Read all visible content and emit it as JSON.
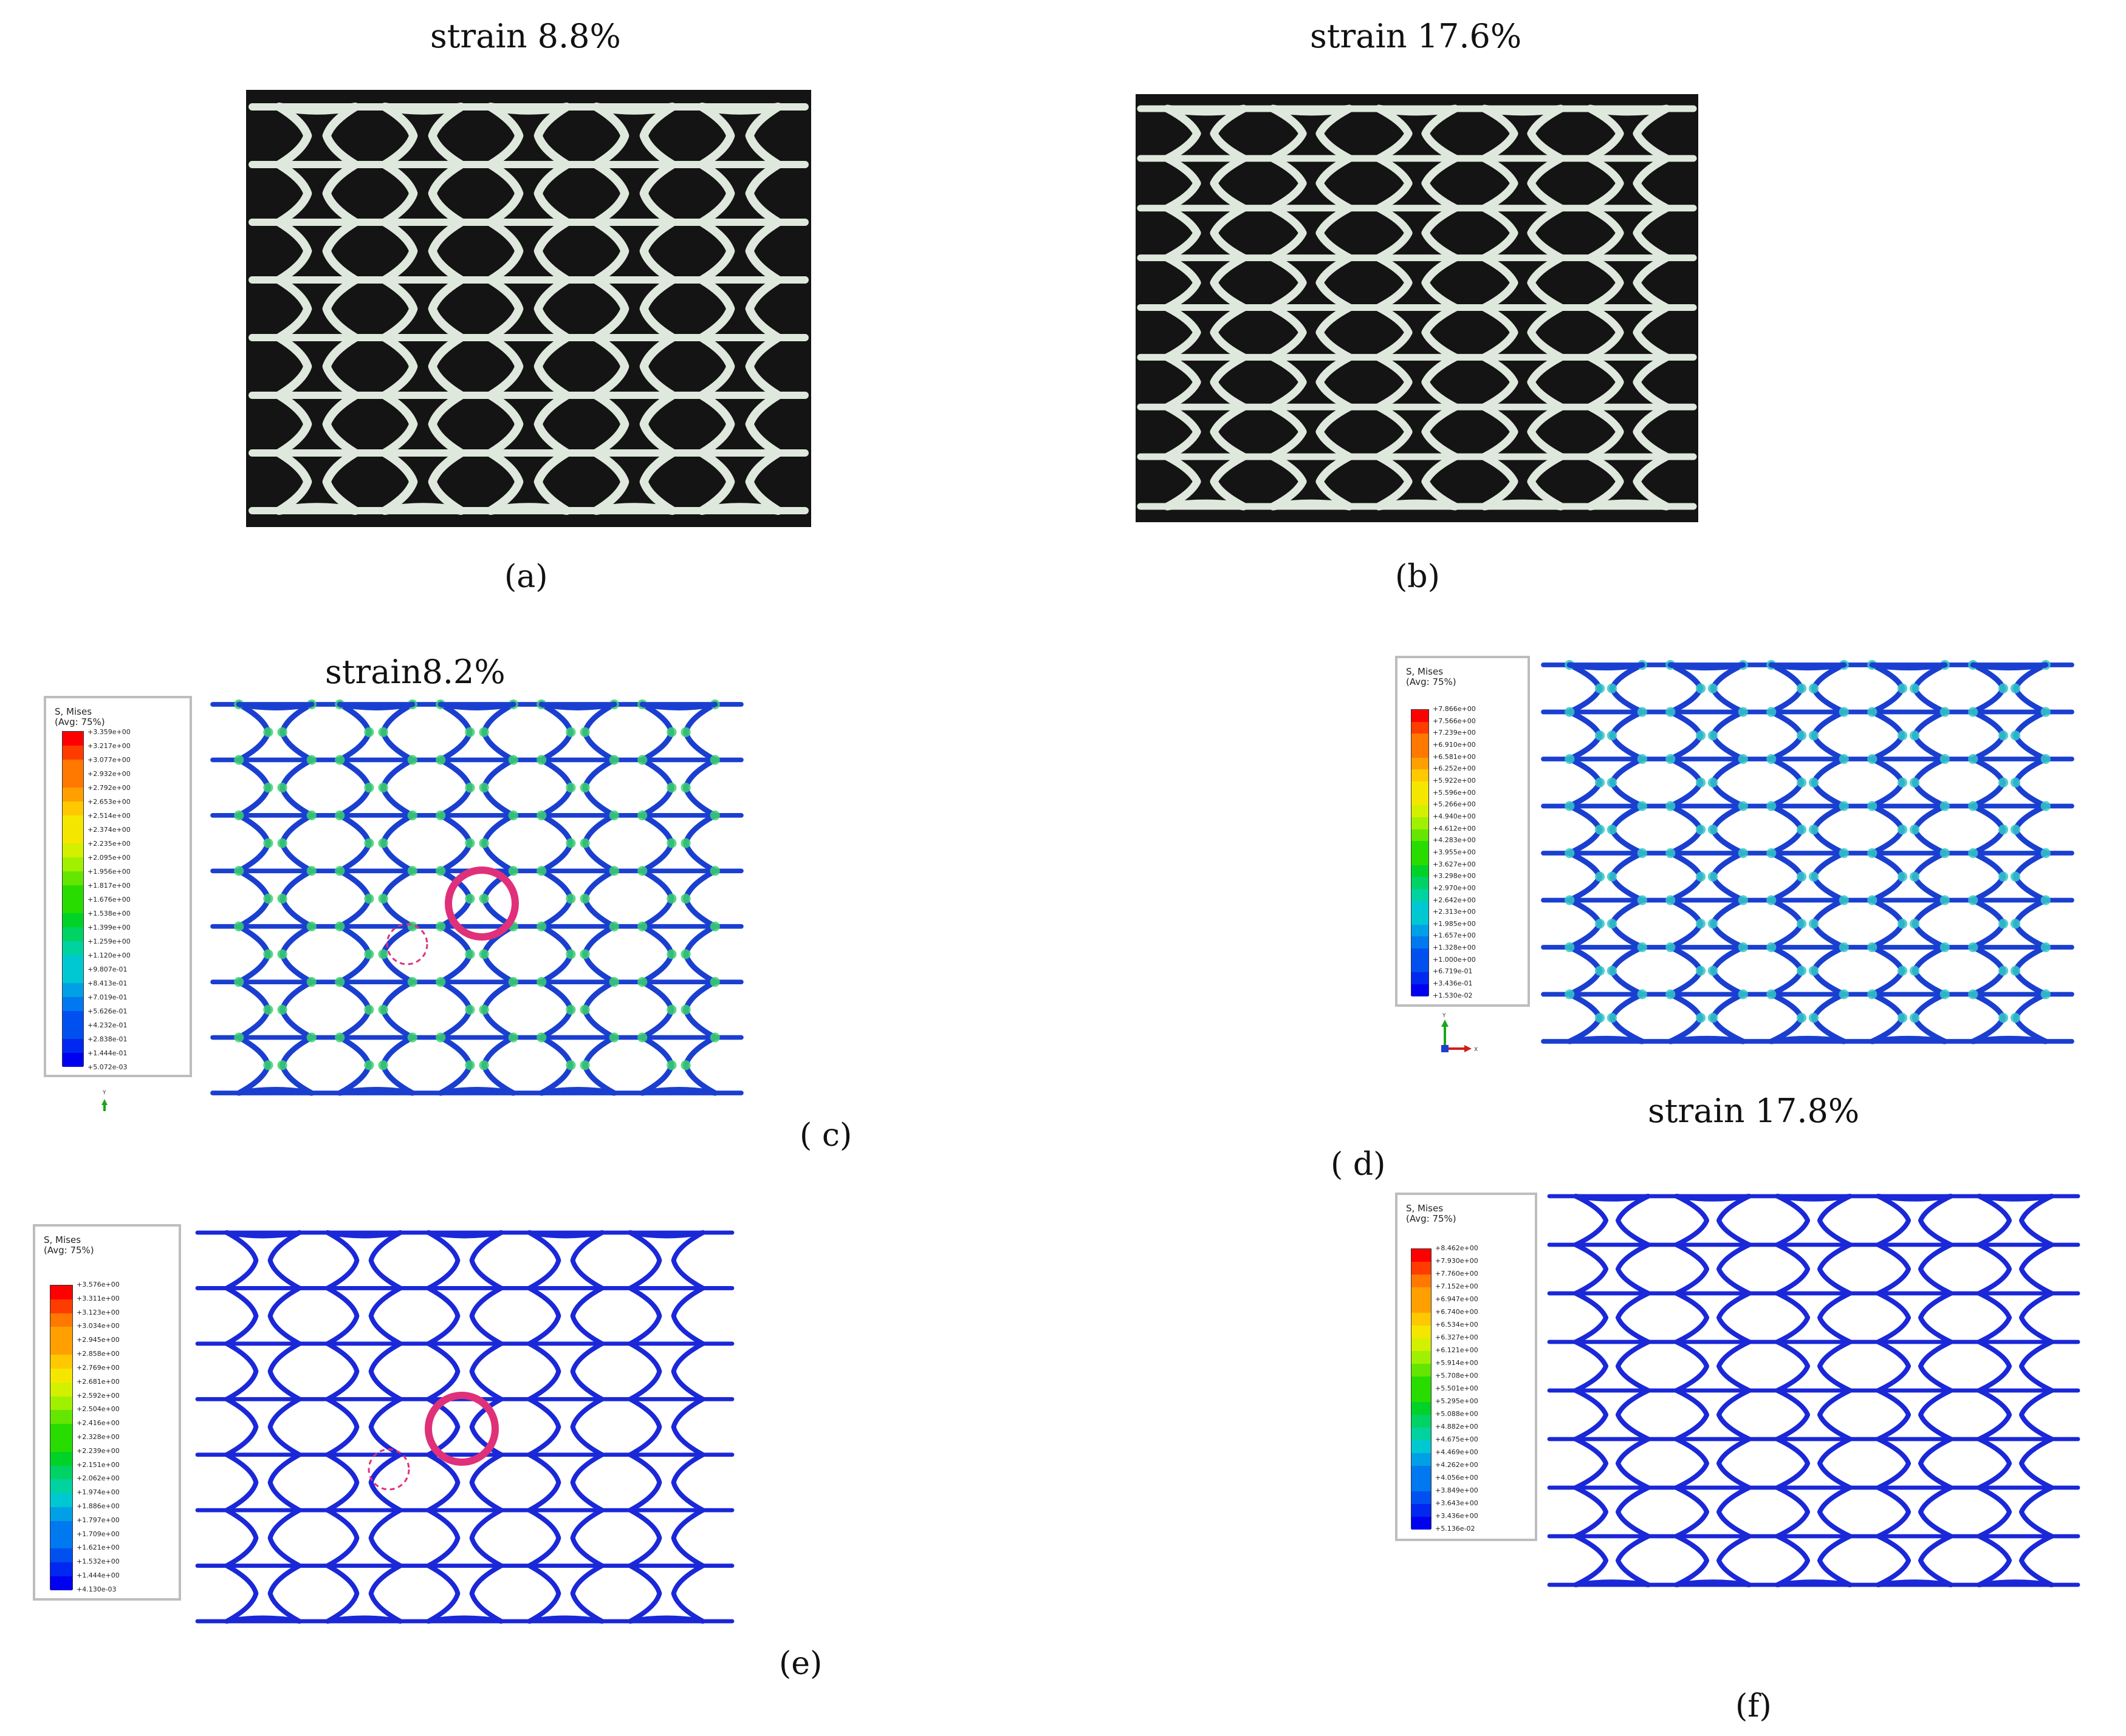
{
  "panels": {
    "a": {
      "title": "strain 8.8%",
      "label": "(a)"
    },
    "b": {
      "title": "strain 17.6%",
      "label": "(b)"
    },
    "c": {
      "title": "strain8.2%",
      "label": "( c)",
      "legend": {
        "title1": "S, Mises",
        "title2": "(Avg: 75%)",
        "values": [
          "+3.359e+00",
          "+3.217e+00",
          "+3.077e+00",
          "+2.932e+00",
          "+2.792e+00",
          "+2.653e+00",
          "+2.514e+00",
          "+2.374e+00",
          "+2.235e+00",
          "+2.095e+00",
          "+1.956e+00",
          "+1.817e+00",
          "+1.676e+00",
          "+1.538e+00",
          "+1.399e+00",
          "+1.259e+00",
          "+1.120e+00",
          "+9.807e-01",
          "+8.413e-01",
          "+7.019e-01",
          "+5.626e-01",
          "+4.232e-01",
          "+2.838e-01",
          "+1.444e-01",
          "+5.072e-03"
        ]
      }
    },
    "d": {
      "title": "strain 17.8%",
      "label": "( d)",
      "legend": {
        "title1": "S, Mises",
        "title2": "(Avg: 75%)",
        "values": [
          "+7.866e+00",
          "+7.566e+00",
          "+7.239e+00",
          "+6.910e+00",
          "+6.581e+00",
          "+6.252e+00",
          "+5.922e+00",
          "+5.596e+00",
          "+5.266e+00",
          "+4.940e+00",
          "+4.612e+00",
          "+4.283e+00",
          "+3.955e+00",
          "+3.627e+00",
          "+3.298e+00",
          "+2.970e+00",
          "+2.642e+00",
          "+2.313e+00",
          "+1.985e+00",
          "+1.657e+00",
          "+1.328e+00",
          "+1.000e+00",
          "+6.719e-01",
          "+3.436e-01",
          "+1.530e-02"
        ]
      }
    },
    "e": {
      "label": "(e)",
      "legend": {
        "title1": "S, Mises",
        "title2": "(Avg: 75%)",
        "values": [
          "+3.576e+00",
          "+3.311e+00",
          "+3.123e+00",
          "+3.034e+00",
          "+2.945e+00",
          "+2.858e+00",
          "+2.769e+00",
          "+2.681e+00",
          "+2.592e+00",
          "+2.504e+00",
          "+2.416e+00",
          "+2.328e+00",
          "+2.239e+00",
          "+2.151e+00",
          "+2.062e+00",
          "+1.974e+00",
          "+1.886e+00",
          "+1.797e+00",
          "+1.709e+00",
          "+1.621e+00",
          "+1.532e+00",
          "+1.444e+00",
          "+4.130e-03"
        ]
      }
    },
    "f": {
      "label": "(f)",
      "legend": {
        "title1": "S, Mises",
        "title2": "(Avg: 75%)",
        "values": [
          "+8.462e+00",
          "+7.930e+00",
          "+7.760e+00",
          "+7.152e+00",
          "+6.947e+00",
          "+6.740e+00",
          "+6.534e+00",
          "+6.327e+00",
          "+6.121e+00",
          "+5.914e+00",
          "+5.708e+00",
          "+5.501e+00",
          "+5.295e+00",
          "+5.088e+00",
          "+4.882e+00",
          "+4.675e+00",
          "+4.469e+00",
          "+4.262e+00",
          "+4.056e+00",
          "+3.849e+00",
          "+3.643e+00",
          "+3.436e+00",
          "+5.136e-02"
        ]
      }
    }
  },
  "colors": {
    "photo_bg": "#141414",
    "photo_strut": "#dfe8dc",
    "fem_low": "#1a2ad8",
    "highlight": "#e0307a"
  }
}
